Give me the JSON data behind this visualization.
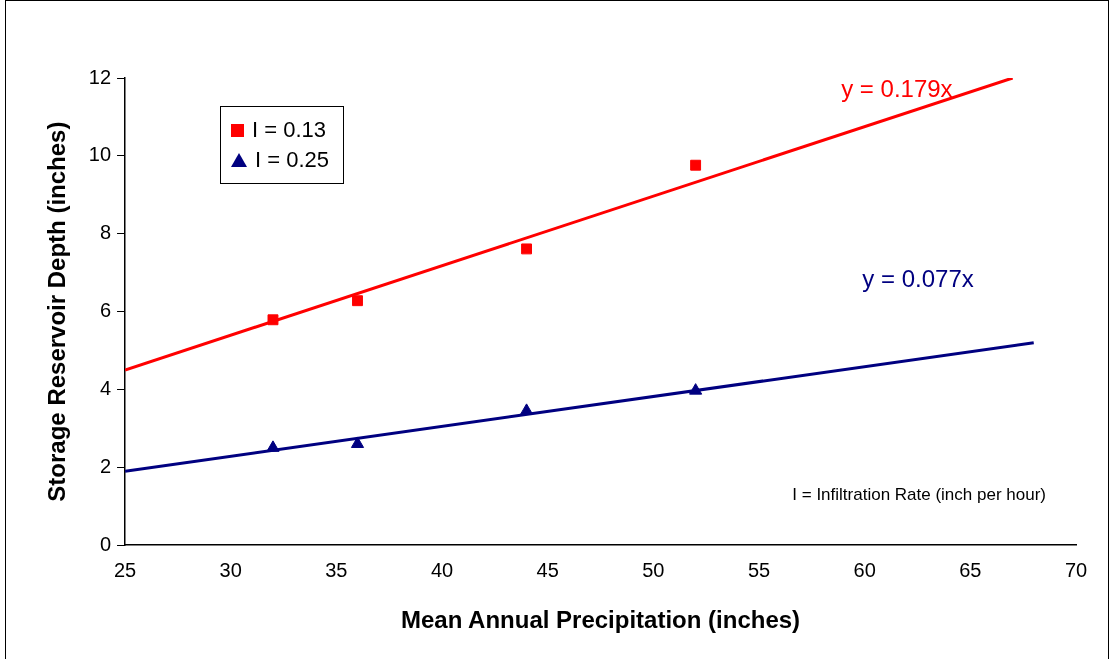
{
  "chart_data": {
    "type": "scatter",
    "xlabel": "Mean Annual Precipitation (inches)",
    "ylabel": "Storage Reservoir Depth (inches)",
    "xlim": [
      25,
      70
    ],
    "xticks": [
      25,
      30,
      35,
      40,
      45,
      50,
      55,
      60,
      65,
      70
    ],
    "ylim": [
      0,
      12
    ],
    "yticks": [
      0,
      2,
      4,
      6,
      8,
      10,
      12
    ],
    "grid": false,
    "legend": "top left",
    "series": [
      {
        "name": "I = 0.13",
        "color": "#ff0000",
        "marker": "square",
        "x": [
          32,
          36,
          44,
          52
        ],
        "values": [
          5.79,
          6.28,
          7.61,
          9.76
        ]
      },
      {
        "name": "I = 0.25",
        "color": "#000080",
        "marker": "triangle",
        "x": [
          32,
          36,
          44,
          52
        ],
        "values": [
          2.5,
          2.6,
          3.45,
          3.97
        ]
      },
      {
        "type": "line",
        "color": "#ff0000",
        "x": [
          25,
          67
        ],
        "values": [
          4.5,
          12
        ]
      },
      {
        "type": "line",
        "color": "#000080",
        "x": [
          25,
          68
        ],
        "values": [
          1.9,
          5.2
        ]
      }
    ],
    "annotations": [
      "y = 0.179x",
      "y = 0.077x",
      "I = Infiltration Rate (inch per hour)"
    ]
  }
}
